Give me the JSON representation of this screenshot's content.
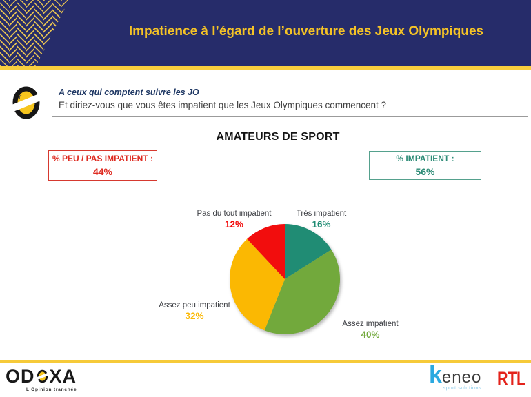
{
  "header": {
    "title": "Impatience à l’égard de l’ouverture des Jeux Olympiques",
    "bg_color": "#262C6A",
    "title_color": "#F5C326",
    "accent_line_color": "#F9CE3D"
  },
  "question": {
    "context": "A ceux qui comptent suivre les JO",
    "text": "Et diriez-vous que vous êtes impatient que les Jeux Olympiques commencent ?"
  },
  "section_title": "AMATEURS DE SPORT",
  "summary_boxes": [
    {
      "label": "% PEU / PAS IMPATIENT :",
      "value": "44%",
      "color": "#DE2B21",
      "border": "#D6392F"
    },
    {
      "label": "% IMPATIENT :",
      "value": "56%",
      "color": "#2E8C77",
      "border": "#55A18D"
    }
  ],
  "chart_data": {
    "type": "pie",
    "title": "AMATEURS DE SPORT",
    "start_angle_deg": 0,
    "direction": "clockwise",
    "slices": [
      {
        "label": "Très impatient",
        "value": 16,
        "color": "#208C74"
      },
      {
        "label": "Assez impatient",
        "value": 40,
        "color": "#72A93C"
      },
      {
        "label": "Assez peu impatient",
        "value": 32,
        "color": "#FBB802"
      },
      {
        "label": "Pas du tout impatient",
        "value": 12,
        "color": "#F20D0D"
      }
    ]
  },
  "footer": {
    "odoxa": {
      "prefix": "OD",
      "suffix": "XA",
      "tagline": "L'Opinion tranchée"
    },
    "keneo": {
      "k": "k",
      "rest": "eneo",
      "tagline": "sport solutions"
    },
    "rtl": "RTL"
  }
}
